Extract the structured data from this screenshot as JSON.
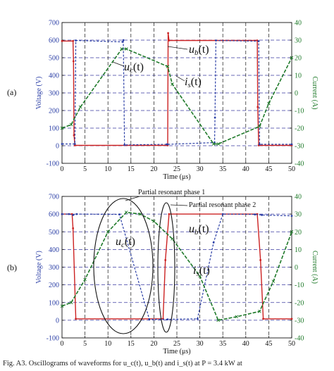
{
  "caption": "Fig. A3. Oscillograms of waveforms for u_c(t), u_b(t) and i_s(t) at P = 3.4 kW at",
  "colors": {
    "ub": "#cc2222",
    "uc": "#2b3fa6",
    "is": "#1f7a2a",
    "grid": "#3a3aa0",
    "vgrid": "#111111",
    "axis": "#111111",
    "leftAxisText": "#2b3fa6",
    "rightAxisText": "#1f7a2a"
  },
  "chart_data": [
    {
      "type": "line",
      "panel_label": "(a)",
      "xlabel": "Time (μs)",
      "ylabel": "Voltage (V)",
      "y2label": "Current (A)",
      "xlim": [
        0,
        50
      ],
      "ylim": [
        -100,
        700
      ],
      "y2lim": [
        -40,
        40
      ],
      "xticks": [
        0,
        5,
        10,
        15,
        20,
        25,
        30,
        35,
        40,
        45,
        50
      ],
      "yticks": [
        -100,
        0,
        100,
        200,
        300,
        400,
        500,
        600,
        700
      ],
      "y2ticks": [
        -40,
        -30,
        -20,
        -10,
        0,
        10,
        20,
        30,
        40
      ],
      "grid": "dashed",
      "annotations": [
        {
          "text": "u",
          "sub": "b",
          "suffix": "(t)",
          "series": "u_b(t)"
        },
        {
          "text": "u",
          "sub": "c",
          "suffix": "(t)",
          "series": "u_c(t)"
        },
        {
          "text": "i",
          "sub": "s",
          "suffix": "(t)",
          "series": "i_s(t)"
        }
      ],
      "series": [
        {
          "name": "u_b(t)",
          "axis": "left",
          "x": [
            0,
            2.4,
            2.5,
            2.6,
            2.8,
            23,
            23.1,
            23.3,
            42.5,
            42.6,
            42.8,
            50
          ],
          "y": [
            595,
            595,
            480,
            60,
            2,
            2,
            640,
            598,
            598,
            220,
            2,
            2
          ]
        },
        {
          "name": "u_c(t)",
          "axis": "left",
          "x": [
            0,
            2.8,
            3,
            13.2,
            13.35,
            13.6,
            22.8,
            23,
            33.2,
            33.3,
            33.5,
            42.8,
            43,
            50
          ],
          "y": [
            10,
            10,
            598,
            590,
            600,
            5,
            8,
            8,
            18,
            160,
            598,
            594,
            8,
            8
          ]
        },
        {
          "name": "i_s(t)",
          "axis": "right",
          "x": [
            0,
            2,
            4,
            13,
            14,
            23,
            24,
            33,
            34,
            43,
            45,
            50
          ],
          "y": [
            -20,
            -18,
            -8,
            25,
            25,
            15,
            5,
            -29,
            -29,
            -19,
            -6,
            20
          ]
        }
      ]
    },
    {
      "type": "line",
      "panel_label": "(b)",
      "xlabel": "Time (μs)",
      "ylabel": "Voltage (V)",
      "y2label": "Current (A)",
      "xlim": [
        0,
        50
      ],
      "ylim": [
        -100,
        700
      ],
      "y2lim": [
        -40,
        40
      ],
      "xticks": [
        0,
        5,
        10,
        15,
        20,
        25,
        30,
        35,
        40,
        45,
        50
      ],
      "yticks": [
        -100,
        0,
        100,
        200,
        300,
        400,
        500,
        600,
        700
      ],
      "y2ticks": [
        -40,
        -30,
        -20,
        -10,
        0,
        10,
        20,
        30,
        40
      ],
      "grid": "dashed",
      "annotations": [
        {
          "text": "Partial resonant phase 1",
          "kind": "callout"
        },
        {
          "text": "Partial resonant phase 2",
          "kind": "callout"
        },
        {
          "text": "u",
          "sub": "c",
          "suffix": "(t)",
          "series": "u_c(t)"
        },
        {
          "text": "u",
          "sub": "b",
          "suffix": "(t)",
          "series": "u_b(t)"
        },
        {
          "text": "i",
          "sub": "s",
          "suffix": "(t)",
          "series": "i_s(t)"
        }
      ],
      "series": [
        {
          "name": "u_b(t)",
          "axis": "left",
          "x": [
            0,
            2.2,
            2.4,
            3,
            22,
            22.5,
            23.3,
            42.5,
            43.2,
            43.8,
            50
          ],
          "y": [
            600,
            600,
            520,
            8,
            8,
            340,
            600,
            600,
            340,
            8,
            8
          ]
        },
        {
          "name": "u_c(t)",
          "axis": "left",
          "x": [
            0,
            1.5,
            2.4,
            3.2,
            12.5,
            19,
            23,
            29.5,
            33,
            35,
            42,
            43.5,
            50
          ],
          "y": [
            600,
            600,
            595,
            600,
            598,
            5,
            5,
            8,
            440,
            600,
            598,
            595,
            590
          ]
        },
        {
          "name": "i_s(t)",
          "axis": "right",
          "x": [
            0,
            2,
            5,
            10,
            14,
            17,
            20,
            24,
            30,
            34,
            38,
            43,
            46,
            50
          ],
          "y": [
            -22,
            -20,
            -7,
            20,
            31,
            30,
            26,
            16,
            -5,
            -30,
            -28,
            -25,
            -8,
            20
          ]
        }
      ]
    }
  ]
}
